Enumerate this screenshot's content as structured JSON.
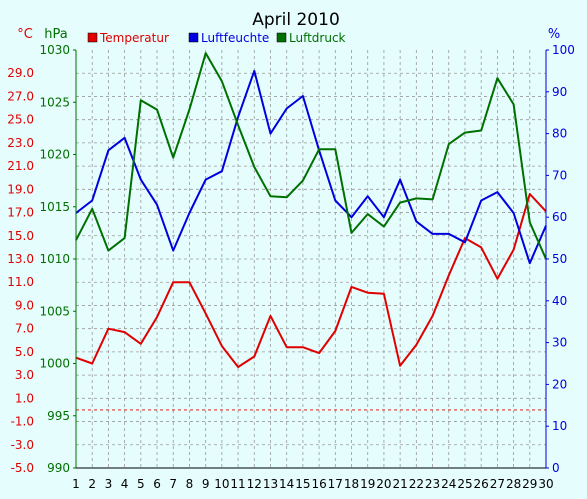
{
  "chart_data": {
    "type": "line",
    "title": "April 2010",
    "x": [
      "1",
      "2",
      "3",
      "4",
      "5",
      "6",
      "7",
      "8",
      "9",
      "10",
      "11",
      "12",
      "13",
      "14",
      "15",
      "16",
      "17",
      "18",
      "19",
      "20",
      "21",
      "22",
      "23",
      "24",
      "25",
      "26",
      "27",
      "28",
      "29",
      "30"
    ],
    "axes": {
      "temp": {
        "unit": "°C",
        "ticks": [
          "29.0",
          "27.0",
          "25.0",
          "23.0",
          "21.0",
          "19.0",
          "17.0",
          "15.0",
          "13.0",
          "11.0",
          "9.0",
          "7.0",
          "5.0",
          "3.0",
          "1.0",
          "-1.0",
          "-3.0",
          "-5.0"
        ],
        "range": [
          -5,
          31
        ]
      },
      "pressure": {
        "unit": "hPa",
        "ticks": [
          "1030",
          "1025",
          "1020",
          "1015",
          "1010",
          "1005",
          "1000",
          "995",
          "990"
        ],
        "range": [
          990,
          1030
        ]
      },
      "humidity": {
        "unit": "%",
        "ticks": [
          "100",
          "90",
          "80",
          "70",
          "60",
          "50",
          "40",
          "30",
          "20",
          "10",
          "0"
        ],
        "range": [
          0,
          100
        ]
      }
    },
    "zero_line_temp": 0,
    "series": [
      {
        "name": "Temperatur",
        "axis": "temp",
        "color": "#e00000",
        "values": [
          4.5,
          4.0,
          7.0,
          6.7,
          5.7,
          8.0,
          11.0,
          11.0,
          8.3,
          5.5,
          3.7,
          4.6,
          8.1,
          5.4,
          5.4,
          4.9,
          6.8,
          10.6,
          10.1,
          10.0,
          3.8,
          5.6,
          8.1,
          11.6,
          14.8,
          14.0,
          11.3,
          13.8,
          18.6,
          17.1
        ]
      },
      {
        "name": "Luftfeuchte",
        "axis": "humidity",
        "color": "#0000e0",
        "values": [
          61,
          64,
          76,
          79,
          69,
          63,
          52,
          61,
          69,
          71,
          84,
          95,
          80,
          86,
          89,
          76,
          64,
          60,
          65,
          60,
          69,
          59,
          56,
          56,
          54,
          64,
          66,
          61,
          49,
          58
        ]
      },
      {
        "name": "Luftdruck",
        "axis": "pressure",
        "color": "#007000",
        "values": [
          1011.8,
          1014.8,
          1010.8,
          1012.0,
          1025.2,
          1024.3,
          1019.7,
          1024.3,
          1029.7,
          1027.0,
          1022.8,
          1018.8,
          1016.0,
          1015.9,
          1017.5,
          1020.5,
          1020.5,
          1012.5,
          1014.3,
          1013.1,
          1015.4,
          1015.8,
          1015.7,
          1021.0,
          1022.1,
          1022.3,
          1027.3,
          1024.8,
          1013.5,
          1010.0
        ]
      }
    ],
    "grid": true,
    "legend_position": "top"
  }
}
